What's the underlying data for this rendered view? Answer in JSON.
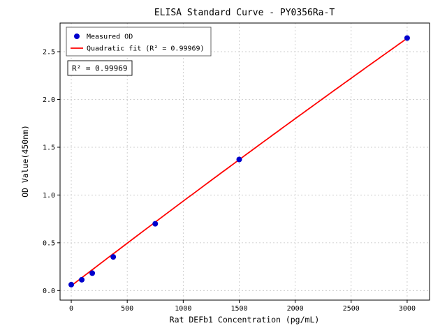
{
  "chart_data": {
    "type": "scatter",
    "title": "ELISA Standard Curve - PY0356Ra-T",
    "xlabel": "Rat DEFb1 Concentration (pg/mL)",
    "ylabel": "OD Value(450nm)",
    "xlim": [
      -100,
      3200
    ],
    "ylim": [
      -0.1,
      2.8
    ],
    "xticks": [
      0,
      500,
      1000,
      1500,
      2000,
      2500,
      3000
    ],
    "yticks": [
      0.0,
      0.5,
      1.0,
      1.5,
      2.0,
      2.5
    ],
    "ytick_labels": [
      "0.0",
      "0.5",
      "1.0",
      "1.5",
      "2.0",
      "2.5"
    ],
    "grid": true,
    "colors": {
      "points": "#0000cd",
      "fit_line": "#ff0000",
      "gridline": "#c3c3c3",
      "frame": "#000000"
    },
    "series": [
      {
        "name": "Measured OD",
        "type": "scatter",
        "color": "#0000cd",
        "points": [
          [
            0,
            0.062
          ],
          [
            93.75,
            0.113
          ],
          [
            187.5,
            0.182
          ],
          [
            375,
            0.352
          ],
          [
            750,
            0.699
          ],
          [
            1500,
            1.372
          ],
          [
            3000,
            2.643
          ]
        ]
      },
      {
        "name": "Quadratic fit",
        "type": "quadratic",
        "color": "#ff0000",
        "coeffs": {
          "a": 0.05,
          "b": 0.0008967,
          "c": -1.111e-08
        },
        "x_range": [
          0,
          3000
        ]
      }
    ],
    "legend": {
      "position": "upper-left",
      "entries": [
        {
          "label": "Measured OD",
          "marker": "point",
          "color": "#0000cd"
        },
        {
          "label": "Quadratic fit (R² = 0.99969)",
          "marker": "line",
          "color": "#ff0000"
        }
      ]
    },
    "annotation": "R² = 0.99969"
  }
}
